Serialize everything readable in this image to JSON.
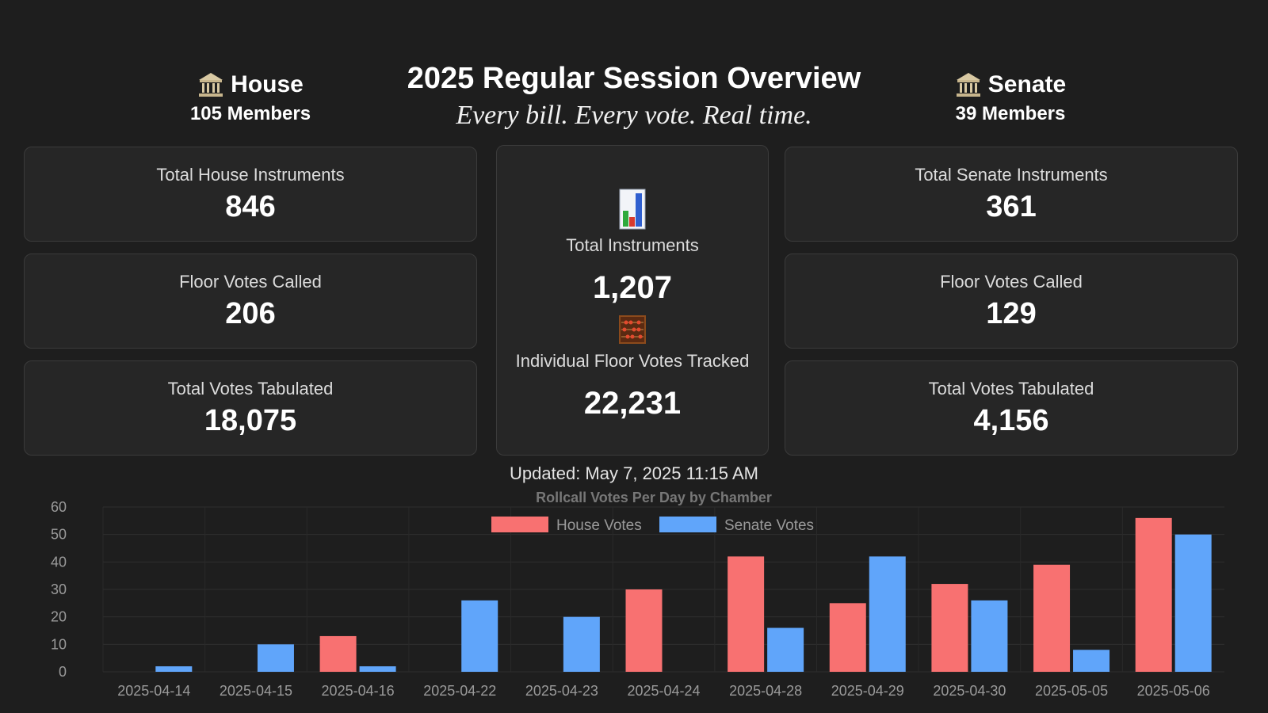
{
  "header": {
    "title": "2025 Regular Session Overview",
    "subtitle": "Every bill. Every vote. Real time."
  },
  "house": {
    "name": "House",
    "members": "105 Members",
    "cards": [
      {
        "label": "Total House Instruments",
        "value": "846"
      },
      {
        "label": "Floor Votes Called",
        "value": "206"
      },
      {
        "label": "Total Votes Tabulated",
        "value": "18,075"
      }
    ]
  },
  "senate": {
    "name": "Senate",
    "members": "39 Members",
    "cards": [
      {
        "label": "Total Senate Instruments",
        "value": "361"
      },
      {
        "label": "Floor Votes Called",
        "value": "129"
      },
      {
        "label": "Total Votes Tabulated",
        "value": "4,156"
      }
    ]
  },
  "center": {
    "total_label": "Total Instruments",
    "total_value": "1,207",
    "votes_label": "Individual Floor Votes Tracked",
    "votes_value": "22,231",
    "icons": [
      "bar-chart-icon",
      "abacus-icon"
    ]
  },
  "updated": "Updated: May 7, 2025 11:15 AM",
  "colors": {
    "background": "#1e1e1e",
    "card": "#262626",
    "house": "#f87171",
    "senate": "#60a5fa"
  },
  "chart_data": {
    "type": "bar",
    "title": "Rollcall Votes Per Day by Chamber",
    "xlabel": "",
    "ylabel": "",
    "ylim": [
      0,
      60
    ],
    "yticks": [
      0,
      10,
      20,
      30,
      40,
      50,
      60
    ],
    "legend_position": "top",
    "grid": true,
    "categories": [
      "2025-04-14",
      "2025-04-15",
      "2025-04-16",
      "2025-04-22",
      "2025-04-23",
      "2025-04-24",
      "2025-04-28",
      "2025-04-29",
      "2025-04-30",
      "2025-05-05",
      "2025-05-06"
    ],
    "series": [
      {
        "name": "House Votes",
        "color": "#f87171",
        "values": [
          0,
          0,
          13,
          0,
          0,
          30,
          42,
          25,
          32,
          39,
          56
        ]
      },
      {
        "name": "Senate Votes",
        "color": "#60a5fa",
        "values": [
          2,
          10,
          2,
          26,
          20,
          0,
          16,
          42,
          26,
          8,
          50
        ]
      }
    ]
  }
}
